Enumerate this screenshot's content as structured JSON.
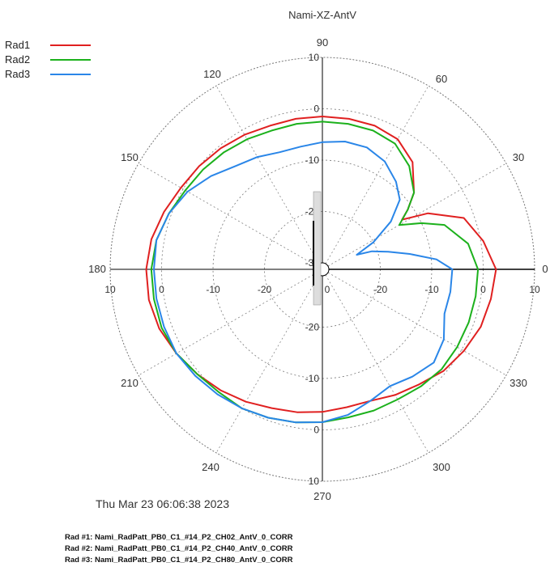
{
  "chart_data": {
    "type": "polar-line",
    "title": "Nami-XZ-AntV",
    "angle_labels": [
      "0",
      "30",
      "60",
      "90",
      "120",
      "150",
      "180",
      "210",
      "240",
      "300",
      "330",
      "270"
    ],
    "radial_labels": {
      "top": [
        "10",
        "0",
        "-10",
        "-20",
        "-30"
      ],
      "bottom": [
        "-20",
        "-10",
        "0",
        "10"
      ],
      "left": [
        "10",
        "0",
        "-10",
        "-20"
      ],
      "right": [
        "0",
        "-20",
        "-10",
        "0",
        "10"
      ]
    },
    "radial_range": [
      -30,
      10
    ],
    "grid": true,
    "legend_position": "top-left",
    "series": [
      {
        "name": "Rad1",
        "color": "#e02020",
        "points": [
          [
            0,
            2.5
          ],
          [
            10,
            0.5
          ],
          [
            20,
            -2
          ],
          [
            28,
            -8
          ],
          [
            32,
            -13
          ],
          [
            35,
            -11
          ],
          [
            40,
            -8
          ],
          [
            50,
            -4
          ],
          [
            60,
            -2
          ],
          [
            70,
            -1.5
          ],
          [
            80,
            -1.5
          ],
          [
            90,
            -1.5
          ],
          [
            100,
            -1.5
          ],
          [
            110,
            -1.5
          ],
          [
            120,
            -1
          ],
          [
            130,
            -0.5
          ],
          [
            140,
            0
          ],
          [
            150,
            0.5
          ],
          [
            160,
            1.5
          ],
          [
            170,
            2.5
          ],
          [
            180,
            3
          ],
          [
            190,
            3
          ],
          [
            200,
            2.5
          ],
          [
            210,
            1.5
          ],
          [
            220,
            0.5
          ],
          [
            230,
            -0.5
          ],
          [
            240,
            -1.5
          ],
          [
            250,
            -2.5
          ],
          [
            260,
            -3
          ],
          [
            270,
            -3.5
          ],
          [
            280,
            -4
          ],
          [
            290,
            -4
          ],
          [
            300,
            -3
          ],
          [
            310,
            -2
          ],
          [
            320,
            -0.5
          ],
          [
            330,
            0.5
          ],
          [
            340,
            1.5
          ],
          [
            350,
            2
          ],
          [
            360,
            2.5
          ]
        ]
      },
      {
        "name": "Rad2",
        "color": "#1cb11c",
        "points": [
          [
            0,
            -1
          ],
          [
            10,
            -2.5
          ],
          [
            20,
            -6
          ],
          [
            25,
            -10
          ],
          [
            30,
            -14
          ],
          [
            35,
            -11
          ],
          [
            40,
            -8
          ],
          [
            50,
            -5
          ],
          [
            60,
            -3
          ],
          [
            70,
            -2.5
          ],
          [
            80,
            -2.5
          ],
          [
            90,
            -2.5
          ],
          [
            100,
            -2.5
          ],
          [
            110,
            -2.5
          ],
          [
            120,
            -2
          ],
          [
            130,
            -1.5
          ],
          [
            140,
            -1
          ],
          [
            150,
            -0.5
          ],
          [
            160,
            0.5
          ],
          [
            170,
            1.5
          ],
          [
            180,
            2
          ],
          [
            190,
            2
          ],
          [
            200,
            2
          ],
          [
            210,
            1.5
          ],
          [
            220,
            0.5
          ],
          [
            230,
            0
          ],
          [
            240,
            0
          ],
          [
            250,
            -0.5
          ],
          [
            260,
            -1
          ],
          [
            270,
            -1.5
          ],
          [
            280,
            -2
          ],
          [
            290,
            -2
          ],
          [
            300,
            -2
          ],
          [
            310,
            -1.5
          ],
          [
            320,
            -1
          ],
          [
            330,
            -1
          ],
          [
            340,
            -1
          ],
          [
            350,
            -1
          ],
          [
            360,
            -1
          ]
        ]
      },
      {
        "name": "Rad3",
        "color": "#2a86e8",
        "points": [
          [
            0,
            -6
          ],
          [
            5,
            -9
          ],
          [
            10,
            -14
          ],
          [
            15,
            -18
          ],
          [
            20,
            -21
          ],
          [
            23,
            -24
          ],
          [
            28,
            -20
          ],
          [
            35,
            -15
          ],
          [
            42,
            -11
          ],
          [
            50,
            -9
          ],
          [
            60,
            -7
          ],
          [
            70,
            -6
          ],
          [
            80,
            -6
          ],
          [
            90,
            -6.5
          ],
          [
            100,
            -7
          ],
          [
            110,
            -7
          ],
          [
            120,
            -6
          ],
          [
            130,
            -5
          ],
          [
            140,
            -3
          ],
          [
            150,
            -1
          ],
          [
            160,
            0.5
          ],
          [
            170,
            1.5
          ],
          [
            180,
            1.5
          ],
          [
            190,
            1.5
          ],
          [
            200,
            1.5
          ],
          [
            210,
            1.5
          ],
          [
            220,
            1
          ],
          [
            230,
            0.5
          ],
          [
            240,
            0
          ],
          [
            250,
            -0.5
          ],
          [
            260,
            -1
          ],
          [
            270,
            -1.5
          ],
          [
            280,
            -2.5
          ],
          [
            290,
            -4
          ],
          [
            300,
            -5
          ],
          [
            310,
            -4
          ],
          [
            320,
            -3
          ],
          [
            330,
            -4
          ],
          [
            340,
            -6
          ],
          [
            350,
            -6
          ],
          [
            360,
            -6
          ]
        ]
      }
    ]
  },
  "legend": {
    "items": [
      {
        "label": "Rad1",
        "color": "#e02020"
      },
      {
        "label": "Rad2",
        "color": "#1cb11c"
      },
      {
        "label": "Rad3",
        "color": "#2a86e8"
      }
    ]
  },
  "timestamp": "Thu Mar 23 06:06:38 2023",
  "notes": [
    "Rad #1: Nami_RadPatt_PB0_C1_#14_P2_CH02_AntV_0_CORR",
    "Rad #2: Nami_RadPatt_PB0_C1_#14_P2_CH40_AntV_0_CORR",
    "Rad #3: Nami_RadPatt_PB0_C1_#14_P2_CH80_AntV_0_CORR"
  ]
}
